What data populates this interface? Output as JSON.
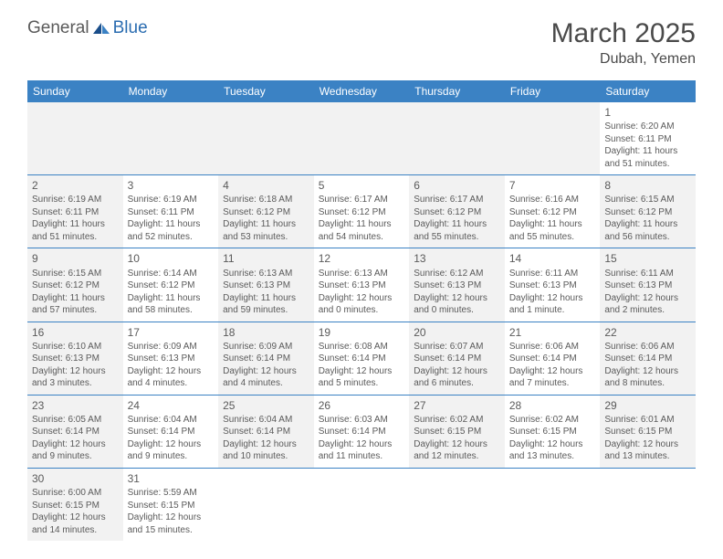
{
  "logo": {
    "text_general": "General",
    "text_blue": "Blue",
    "accent_color": "#2a6cb0"
  },
  "title": "March 2025",
  "location": "Dubah, Yemen",
  "header_bg": "#3b82c4",
  "alt_row_bg": "#f2f2f2",
  "border_color": "#3b82c4",
  "days_of_week": [
    "Sunday",
    "Monday",
    "Tuesday",
    "Wednesday",
    "Thursday",
    "Friday",
    "Saturday"
  ],
  "weeks": [
    [
      null,
      null,
      null,
      null,
      null,
      null,
      {
        "n": "1",
        "sr": "Sunrise: 6:20 AM",
        "ss": "Sunset: 6:11 PM",
        "dl": "Daylight: 11 hours and 51 minutes."
      }
    ],
    [
      {
        "n": "2",
        "sr": "Sunrise: 6:19 AM",
        "ss": "Sunset: 6:11 PM",
        "dl": "Daylight: 11 hours and 51 minutes."
      },
      {
        "n": "3",
        "sr": "Sunrise: 6:19 AM",
        "ss": "Sunset: 6:11 PM",
        "dl": "Daylight: 11 hours and 52 minutes."
      },
      {
        "n": "4",
        "sr": "Sunrise: 6:18 AM",
        "ss": "Sunset: 6:12 PM",
        "dl": "Daylight: 11 hours and 53 minutes."
      },
      {
        "n": "5",
        "sr": "Sunrise: 6:17 AM",
        "ss": "Sunset: 6:12 PM",
        "dl": "Daylight: 11 hours and 54 minutes."
      },
      {
        "n": "6",
        "sr": "Sunrise: 6:17 AM",
        "ss": "Sunset: 6:12 PM",
        "dl": "Daylight: 11 hours and 55 minutes."
      },
      {
        "n": "7",
        "sr": "Sunrise: 6:16 AM",
        "ss": "Sunset: 6:12 PM",
        "dl": "Daylight: 11 hours and 55 minutes."
      },
      {
        "n": "8",
        "sr": "Sunrise: 6:15 AM",
        "ss": "Sunset: 6:12 PM",
        "dl": "Daylight: 11 hours and 56 minutes."
      }
    ],
    [
      {
        "n": "9",
        "sr": "Sunrise: 6:15 AM",
        "ss": "Sunset: 6:12 PM",
        "dl": "Daylight: 11 hours and 57 minutes."
      },
      {
        "n": "10",
        "sr": "Sunrise: 6:14 AM",
        "ss": "Sunset: 6:12 PM",
        "dl": "Daylight: 11 hours and 58 minutes."
      },
      {
        "n": "11",
        "sr": "Sunrise: 6:13 AM",
        "ss": "Sunset: 6:13 PM",
        "dl": "Daylight: 11 hours and 59 minutes."
      },
      {
        "n": "12",
        "sr": "Sunrise: 6:13 AM",
        "ss": "Sunset: 6:13 PM",
        "dl": "Daylight: 12 hours and 0 minutes."
      },
      {
        "n": "13",
        "sr": "Sunrise: 6:12 AM",
        "ss": "Sunset: 6:13 PM",
        "dl": "Daylight: 12 hours and 0 minutes."
      },
      {
        "n": "14",
        "sr": "Sunrise: 6:11 AM",
        "ss": "Sunset: 6:13 PM",
        "dl": "Daylight: 12 hours and 1 minute."
      },
      {
        "n": "15",
        "sr": "Sunrise: 6:11 AM",
        "ss": "Sunset: 6:13 PM",
        "dl": "Daylight: 12 hours and 2 minutes."
      }
    ],
    [
      {
        "n": "16",
        "sr": "Sunrise: 6:10 AM",
        "ss": "Sunset: 6:13 PM",
        "dl": "Daylight: 12 hours and 3 minutes."
      },
      {
        "n": "17",
        "sr": "Sunrise: 6:09 AM",
        "ss": "Sunset: 6:13 PM",
        "dl": "Daylight: 12 hours and 4 minutes."
      },
      {
        "n": "18",
        "sr": "Sunrise: 6:09 AM",
        "ss": "Sunset: 6:14 PM",
        "dl": "Daylight: 12 hours and 4 minutes."
      },
      {
        "n": "19",
        "sr": "Sunrise: 6:08 AM",
        "ss": "Sunset: 6:14 PM",
        "dl": "Daylight: 12 hours and 5 minutes."
      },
      {
        "n": "20",
        "sr": "Sunrise: 6:07 AM",
        "ss": "Sunset: 6:14 PM",
        "dl": "Daylight: 12 hours and 6 minutes."
      },
      {
        "n": "21",
        "sr": "Sunrise: 6:06 AM",
        "ss": "Sunset: 6:14 PM",
        "dl": "Daylight: 12 hours and 7 minutes."
      },
      {
        "n": "22",
        "sr": "Sunrise: 6:06 AM",
        "ss": "Sunset: 6:14 PM",
        "dl": "Daylight: 12 hours and 8 minutes."
      }
    ],
    [
      {
        "n": "23",
        "sr": "Sunrise: 6:05 AM",
        "ss": "Sunset: 6:14 PM",
        "dl": "Daylight: 12 hours and 9 minutes."
      },
      {
        "n": "24",
        "sr": "Sunrise: 6:04 AM",
        "ss": "Sunset: 6:14 PM",
        "dl": "Daylight: 12 hours and 9 minutes."
      },
      {
        "n": "25",
        "sr": "Sunrise: 6:04 AM",
        "ss": "Sunset: 6:14 PM",
        "dl": "Daylight: 12 hours and 10 minutes."
      },
      {
        "n": "26",
        "sr": "Sunrise: 6:03 AM",
        "ss": "Sunset: 6:14 PM",
        "dl": "Daylight: 12 hours and 11 minutes."
      },
      {
        "n": "27",
        "sr": "Sunrise: 6:02 AM",
        "ss": "Sunset: 6:15 PM",
        "dl": "Daylight: 12 hours and 12 minutes."
      },
      {
        "n": "28",
        "sr": "Sunrise: 6:02 AM",
        "ss": "Sunset: 6:15 PM",
        "dl": "Daylight: 12 hours and 13 minutes."
      },
      {
        "n": "29",
        "sr": "Sunrise: 6:01 AM",
        "ss": "Sunset: 6:15 PM",
        "dl": "Daylight: 12 hours and 13 minutes."
      }
    ],
    [
      {
        "n": "30",
        "sr": "Sunrise: 6:00 AM",
        "ss": "Sunset: 6:15 PM",
        "dl": "Daylight: 12 hours and 14 minutes."
      },
      {
        "n": "31",
        "sr": "Sunrise: 5:59 AM",
        "ss": "Sunset: 6:15 PM",
        "dl": "Daylight: 12 hours and 15 minutes."
      },
      null,
      null,
      null,
      null,
      null
    ]
  ]
}
